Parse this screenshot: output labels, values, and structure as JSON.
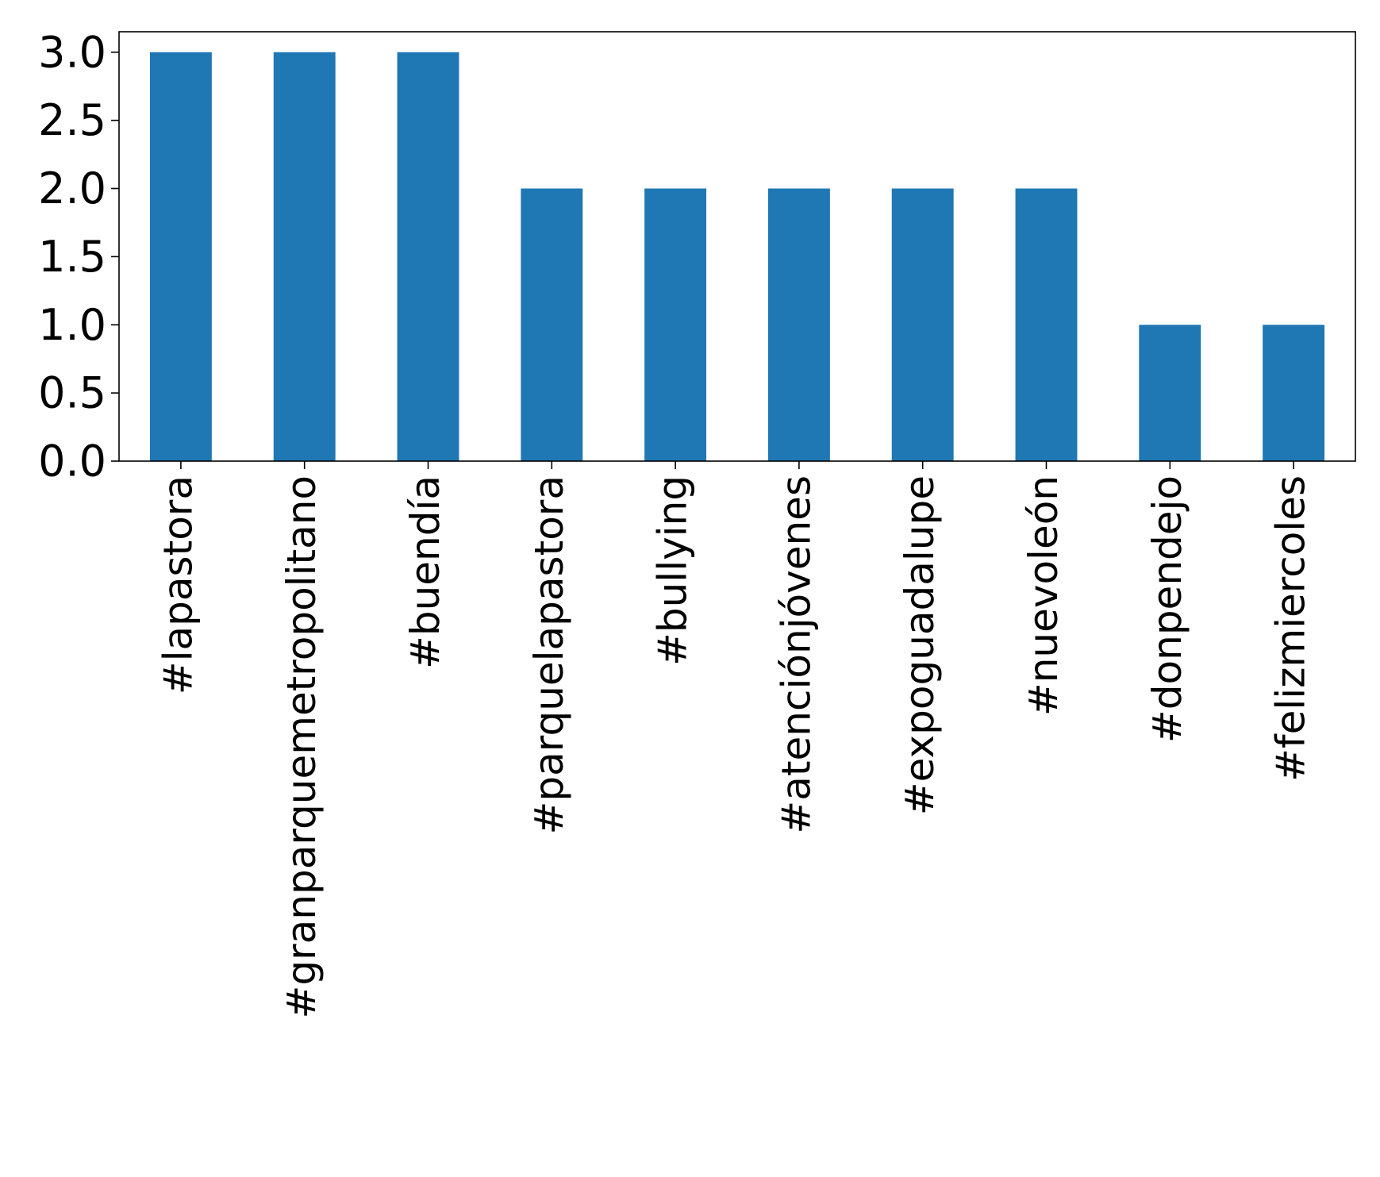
{
  "chart_data": {
    "type": "bar",
    "categories": [
      "#lapastora",
      "#granparquemetropolitano",
      "#buendía",
      "#parquelapastora",
      "#bullying",
      "#atenciónjóvenes",
      "#expoguadalupe",
      "#nuevoleón",
      "#donpendejo",
      "#felizmiercoles"
    ],
    "values": [
      3,
      3,
      3,
      2,
      2,
      2,
      2,
      2,
      1,
      1
    ],
    "yticks": [
      "0.0",
      "0.5",
      "1.0",
      "1.5",
      "2.0",
      "2.5",
      "3.0"
    ],
    "ylim": [
      0,
      3.15
    ],
    "title": "",
    "xlabel": "",
    "ylabel": "",
    "bar_color": "#1f77b4",
    "grid": false,
    "legend": "none"
  }
}
